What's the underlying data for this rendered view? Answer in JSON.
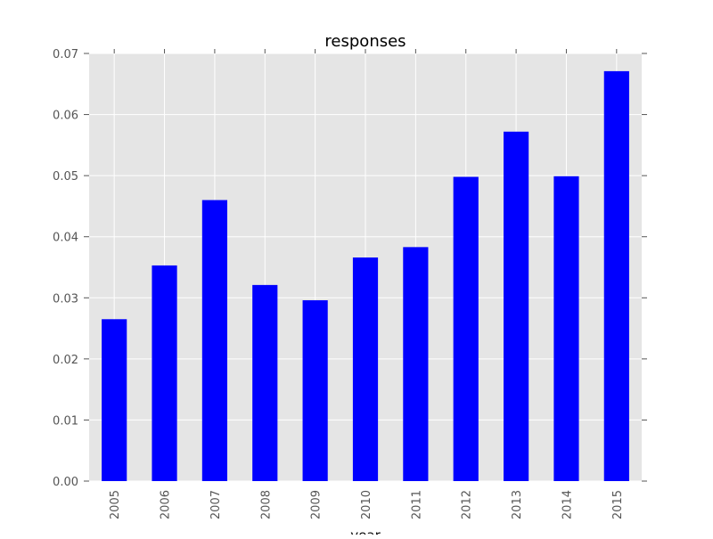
{
  "chart_data": {
    "type": "bar",
    "title": "responses",
    "xlabel": "year",
    "ylabel": "",
    "categories": [
      "2005",
      "2006",
      "2007",
      "2008",
      "2009",
      "2010",
      "2011",
      "2012",
      "2013",
      "2014",
      "2015"
    ],
    "values": [
      0.0265,
      0.0353,
      0.046,
      0.0321,
      0.0296,
      0.0366,
      0.0383,
      0.0498,
      0.0572,
      0.0499,
      0.0671
    ],
    "ylim": [
      0,
      0.07
    ],
    "yticks": [
      "0.00",
      "0.01",
      "0.02",
      "0.03",
      "0.04",
      "0.05",
      "0.06",
      "0.07"
    ],
    "grid": true,
    "bar_color": "#0000ff",
    "plot_background": "#e5e5e5",
    "grid_color": "#ffffff"
  }
}
